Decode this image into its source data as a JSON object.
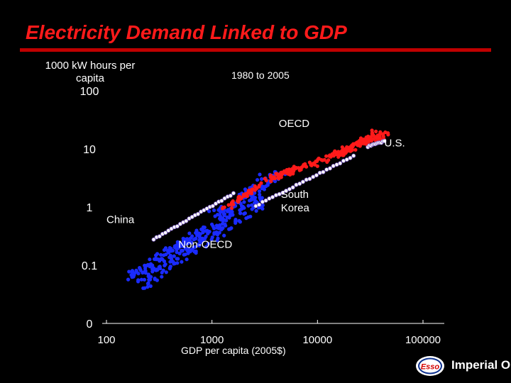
{
  "header": {
    "title": "Electricity Demand Linked to GDP"
  },
  "logo": {
    "brand": "Esso",
    "company": "Imperial Oil"
  },
  "colors": {
    "title": "#ff1a1a",
    "oecd": "#ff1a1a",
    "non_oecd": "#1a2bff",
    "path": "#ffffff"
  },
  "chart_data": {
    "type": "scatter",
    "title": "Electricity Demand Linked to GDP",
    "subtitle": "1980 to 2005",
    "xlabel": "GDP per capita (2005$)",
    "ylabel": "1000 kW hours per capita",
    "x_scale": "log",
    "y_scale": "log",
    "xlim": [
      100,
      100000
    ],
    "ylim": [
      0.01,
      100
    ],
    "x_ticks": [
      {
        "value": 100,
        "label": "100"
      },
      {
        "value": 1000,
        "label": "1000"
      },
      {
        "value": 10000,
        "label": "10000"
      },
      {
        "value": 100000,
        "label": "100000"
      }
    ],
    "y_ticks": [
      {
        "value": 0.01,
        "label": "0"
      },
      {
        "value": 0.1,
        "label": "0.1"
      },
      {
        "value": 1,
        "label": "1"
      },
      {
        "value": 10,
        "label": "10"
      },
      {
        "value": 100,
        "label": "100"
      }
    ],
    "series": [
      {
        "name": "OECD",
        "clouds": [
          {
            "x": [
              3500,
              45000
            ],
            "y": [
              3.0,
              18.0
            ],
            "n": 160,
            "spread": 0.1
          },
          {
            "x": [
              1300,
              3500
            ],
            "y": [
              0.9,
              3.0
            ],
            "n": 50,
            "spread": 0.08
          },
          {
            "x": [
              15000,
              35000
            ],
            "y": [
              7.0,
              20.0
            ],
            "n": 40,
            "spread": 0.06
          }
        ]
      },
      {
        "name": "Non-OECD",
        "clouds": [
          {
            "x": [
              220,
              3000
            ],
            "y": [
              0.05,
              1.5
            ],
            "n": 200,
            "spread": 0.22
          },
          {
            "x": [
              1000,
              4500
            ],
            "y": [
              0.6,
              4.0
            ],
            "n": 80,
            "spread": 0.15
          },
          {
            "x": [
              160,
              800
            ],
            "y": [
              0.06,
              0.4
            ],
            "n": 70,
            "spread": 0.12
          }
        ]
      },
      {
        "name": "China",
        "path": {
          "x": [
            280,
            1600
          ],
          "y": [
            0.28,
            1.7
          ],
          "n": 28
        }
      },
      {
        "name": "South Korea",
        "path": {
          "x": [
            2600,
            22000
          ],
          "y": [
            1.05,
            7.5
          ],
          "n": 30
        }
      },
      {
        "name": "U.S.",
        "path": {
          "x": [
            30000,
            43000
          ],
          "y": [
            11.0,
            13.5
          ],
          "n": 12
        }
      }
    ],
    "annotations": [
      {
        "text": "OECD",
        "x": 4300,
        "y": 24,
        "anchor": "start"
      },
      {
        "text": "U.S.",
        "x": 43000,
        "y": 11.0,
        "anchor": "start"
      },
      {
        "text": "South",
        "x": 4500,
        "y": 1.45,
        "anchor": "start"
      },
      {
        "text": "Korea",
        "x": 4500,
        "y": 0.85,
        "anchor": "start"
      },
      {
        "text": "China",
        "x": 100,
        "y": 0.53,
        "anchor": "start"
      },
      {
        "text": "Non-OECD",
        "x": 480,
        "y": 0.2,
        "anchor": "start"
      }
    ]
  }
}
